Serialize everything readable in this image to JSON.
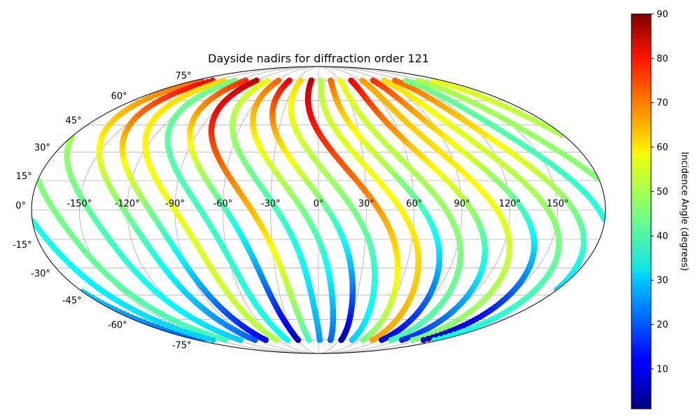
{
  "chart_data": {
    "type": "scatter",
    "projection": "mollweide",
    "title": "Dayside nadirs for diffraction order 121",
    "colormap": "jet",
    "grid": true,
    "lon_ticks": [
      "-150°",
      "-120°",
      "-90°",
      "-60°",
      "-30°",
      "0°",
      "30°",
      "60°",
      "90°",
      "120°",
      "150°"
    ],
    "lon_tick_values": [
      -150,
      -120,
      -90,
      -60,
      -30,
      0,
      30,
      60,
      90,
      120,
      150
    ],
    "lat_ticks": [
      "75°",
      "60°",
      "45°",
      "30°",
      "15°",
      "0°",
      "-15°",
      "-30°",
      "-45°",
      "-60°",
      "-75°"
    ],
    "lat_tick_values": [
      75,
      60,
      45,
      30,
      15,
      0,
      -15,
      -30,
      -45,
      -60,
      -75
    ],
    "latitude_range": [
      -75,
      75
    ],
    "colorbar": {
      "label": "Incidence Angle (degrees)",
      "range": [
        1,
        90
      ],
      "ticks": [
        "90",
        "80",
        "70",
        "60",
        "50",
        "40",
        "30",
        "20",
        "10"
      ],
      "tick_values": [
        90,
        80,
        70,
        60,
        50,
        40,
        30,
        20,
        10
      ]
    },
    "tracks_approx": [
      {
        "lon0": -172,
        "color_at_north": 50,
        "color_at_south": 40
      },
      {
        "lon0": -150,
        "color_at_north": 55,
        "color_at_south": 30
      },
      {
        "lon0": -128,
        "color_at_north": 70,
        "color_at_south": 20
      },
      {
        "lon0": -112,
        "color_at_north": 80,
        "color_at_south": 10
      },
      {
        "lon0": -96,
        "color_at_north": 60,
        "color_at_south": 50
      },
      {
        "lon0": -80,
        "color_at_north": 45,
        "color_at_south": 35
      },
      {
        "lon0": -64,
        "color_at_north": 75,
        "color_at_south": 5
      },
      {
        "lon0": -48,
        "color_at_north": 85,
        "color_at_south": 40
      },
      {
        "lon0": -32,
        "color_at_north": 55,
        "color_at_south": 25
      },
      {
        "lon0": -16,
        "color_at_north": 70,
        "color_at_south": 20
      },
      {
        "lon0": 0,
        "color_at_north": 80,
        "color_at_south": 5
      },
      {
        "lon0": 16,
        "color_at_north": 60,
        "color_at_south": 30
      },
      {
        "lon0": 32,
        "color_at_north": 85,
        "color_at_south": 45
      },
      {
        "lon0": 46,
        "color_at_north": 50,
        "color_at_south": 65
      },
      {
        "lon0": 60,
        "color_at_north": 70,
        "color_at_south": 10
      },
      {
        "lon0": 74,
        "color_at_north": 55,
        "color_at_south": 40
      },
      {
        "lon0": 90,
        "color_at_north": 80,
        "color_at_south": 15
      },
      {
        "lon0": 106,
        "color_at_north": 65,
        "color_at_south": 45
      },
      {
        "lon0": 122,
        "color_at_north": 75,
        "color_at_south": 5
      },
      {
        "lon0": 138,
        "color_at_north": 60,
        "color_at_south": 35
      },
      {
        "lon0": 154,
        "color_at_north": 70,
        "color_at_south": 20
      },
      {
        "lon0": 170,
        "color_at_north": 45,
        "color_at_south": 30
      }
    ]
  }
}
